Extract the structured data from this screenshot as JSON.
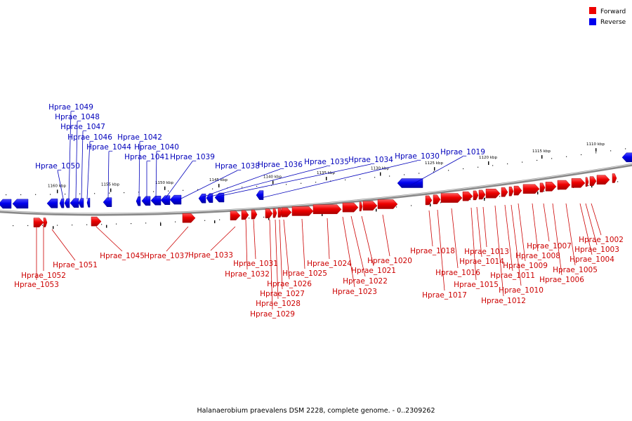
{
  "caption": "Halanaerobium praevalens DSM 2228, complete genome. - 0..2309262",
  "legend": [
    {
      "label": "Forward",
      "color": "#ee0000"
    },
    {
      "label": "Reverse",
      "color": "#0000ee"
    }
  ],
  "ticks": [
    {
      "label": "1110 kbp",
      "kbp": 1110
    },
    {
      "label": "1115 kbp",
      "kbp": 1115
    },
    {
      "label": "1120 kbp",
      "kbp": 1120
    },
    {
      "label": "1125 kbp",
      "kbp": 1125
    },
    {
      "label": "1130 kbp",
      "kbp": 1130
    },
    {
      "label": "1135 kbp",
      "kbp": 1135
    },
    {
      "label": "1140 kbp",
      "kbp": 1140
    },
    {
      "label": "1145 kbp",
      "kbp": 1145
    },
    {
      "label": "1150 kbp",
      "kbp": 1150
    },
    {
      "label": "1155 kbp",
      "kbp": 1155
    },
    {
      "label": "1160 kbp",
      "kbp": 1160
    }
  ],
  "forward_genes": [
    "Hprae_1002",
    "Hprae_1003",
    "Hprae_1004",
    "Hprae_1005",
    "Hprae_1006",
    "Hprae_1007",
    "Hprae_1008",
    "Hprae_1009",
    "Hprae_1010",
    "Hprae_1011",
    "Hprae_1012",
    "Hprae_1013",
    "Hprae_1014",
    "Hprae_1015",
    "Hprae_1016",
    "Hprae_1017",
    "Hprae_1018",
    "Hprae_1020",
    "Hprae_1021",
    "Hprae_1022",
    "Hprae_1023",
    "Hprae_1024",
    "Hprae_1025",
    "Hprae_1026",
    "Hprae_1027",
    "Hprae_1028",
    "Hprae_1029",
    "Hprae_1031",
    "Hprae_1032",
    "Hprae_1033",
    "Hprae_1037",
    "Hprae_1045",
    "Hprae_1051",
    "Hprae_1052",
    "Hprae_1053"
  ],
  "reverse_genes": [
    "Hprae_1019",
    "Hprae_1030",
    "Hprae_1034",
    "Hprae_1035",
    "Hprae_1036",
    "Hprae_1038",
    "Hprae_1039",
    "Hprae_1040",
    "Hprae_1041",
    "Hprae_1042",
    "Hprae_1044",
    "Hprae_1046",
    "Hprae_1047",
    "Hprae_1048",
    "Hprae_1049",
    "Hprae_1050"
  ]
}
